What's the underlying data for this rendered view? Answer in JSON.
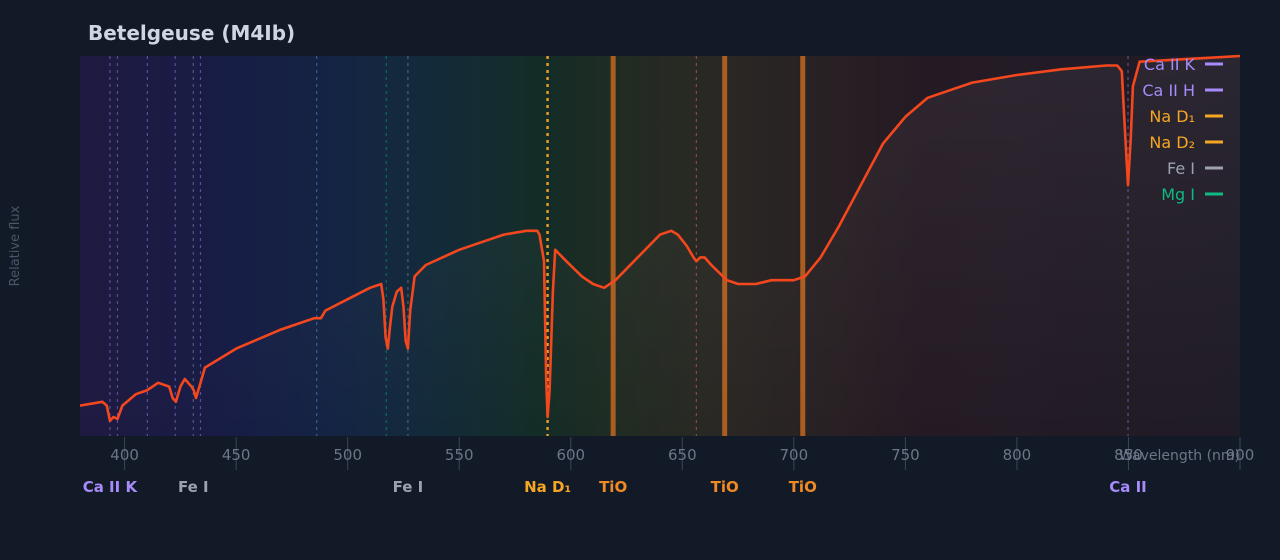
{
  "chart_data": {
    "type": "line",
    "title": "Betelgeuse (M4Ib)",
    "xlabel": "Wavelength (nm)",
    "ylabel": "Relative flux",
    "xlim": [
      380,
      900
    ],
    "ylim": [
      0,
      1
    ],
    "grid": false,
    "legend_position": "top-right",
    "x_ticks": [
      400,
      450,
      500,
      550,
      600,
      650,
      700,
      750,
      800,
      850,
      900
    ],
    "line_color": "#f4471e",
    "series": [
      {
        "values": [
          [
            380,
            0.08
          ],
          [
            390,
            0.09
          ],
          [
            392,
            0.08
          ],
          [
            393.4,
            0.04
          ],
          [
            395,
            0.05
          ],
          [
            396.8,
            0.045
          ],
          [
            399,
            0.08
          ],
          [
            405,
            0.11
          ],
          [
            410,
            0.12
          ],
          [
            415,
            0.14
          ],
          [
            420,
            0.13
          ],
          [
            421.5,
            0.1
          ],
          [
            423,
            0.09
          ],
          [
            425,
            0.13
          ],
          [
            427,
            0.15
          ],
          [
            430,
            0.13
          ],
          [
            431,
            0.12
          ],
          [
            432,
            0.1
          ],
          [
            434,
            0.14
          ],
          [
            436,
            0.18
          ],
          [
            450,
            0.23
          ],
          [
            470,
            0.28
          ],
          [
            480,
            0.3
          ],
          [
            485,
            0.31
          ],
          [
            488,
            0.31
          ],
          [
            490,
            0.33
          ],
          [
            500,
            0.36
          ],
          [
            510,
            0.39
          ],
          [
            515,
            0.4
          ],
          [
            516,
            0.36
          ],
          [
            517,
            0.26
          ],
          [
            518,
            0.23
          ],
          [
            519,
            0.29
          ],
          [
            520,
            0.34
          ],
          [
            522,
            0.38
          ],
          [
            524,
            0.39
          ],
          [
            525,
            0.34
          ],
          [
            526,
            0.25
          ],
          [
            527,
            0.23
          ],
          [
            528,
            0.33
          ],
          [
            530,
            0.42
          ],
          [
            535,
            0.45
          ],
          [
            550,
            0.49
          ],
          [
            560,
            0.51
          ],
          [
            570,
            0.53
          ],
          [
            580,
            0.54
          ],
          [
            585,
            0.54
          ],
          [
            586,
            0.53
          ],
          [
            588,
            0.46
          ],
          [
            589,
            0.15
          ],
          [
            589.6,
            0.05
          ],
          [
            590.5,
            0.12
          ],
          [
            592,
            0.38
          ],
          [
            593,
            0.49
          ],
          [
            598,
            0.46
          ],
          [
            605,
            0.42
          ],
          [
            610,
            0.4
          ],
          [
            615,
            0.39
          ],
          [
            620,
            0.41
          ],
          [
            630,
            0.47
          ],
          [
            640,
            0.53
          ],
          [
            645,
            0.54
          ],
          [
            648,
            0.53
          ],
          [
            652,
            0.5
          ],
          [
            655,
            0.47
          ],
          [
            656.3,
            0.46
          ],
          [
            658,
            0.47
          ],
          [
            660,
            0.47
          ],
          [
            663,
            0.45
          ],
          [
            670,
            0.41
          ],
          [
            675,
            0.4
          ],
          [
            683,
            0.4
          ],
          [
            690,
            0.41
          ],
          [
            700,
            0.41
          ],
          [
            705,
            0.42
          ],
          [
            712,
            0.47
          ],
          [
            720,
            0.55
          ],
          [
            730,
            0.66
          ],
          [
            740,
            0.77
          ],
          [
            750,
            0.84
          ],
          [
            760,
            0.89
          ],
          [
            770,
            0.91
          ],
          [
            780,
            0.93
          ],
          [
            800,
            0.95
          ],
          [
            820,
            0.965
          ],
          [
            840,
            0.975
          ],
          [
            845,
            0.975
          ],
          [
            847,
            0.96
          ],
          [
            848,
            0.85
          ],
          [
            849.8,
            0.66
          ],
          [
            851,
            0.78
          ],
          [
            852,
            0.92
          ],
          [
            855,
            0.985
          ],
          [
            870,
            0.99
          ],
          [
            885,
            0.995
          ],
          [
            900,
            1.0
          ]
        ]
      }
    ],
    "legend": [
      {
        "label": "Ca II K",
        "color": "#a78bfa"
      },
      {
        "label": "Ca II H",
        "color": "#a78bfa"
      },
      {
        "label": "Na D₁",
        "color": "#f5a623"
      },
      {
        "label": "Na D₂",
        "color": "#f5a623"
      },
      {
        "label": "Fe I",
        "color": "#9ca3af"
      },
      {
        "label": "Mg I",
        "color": "#10b981"
      }
    ],
    "line_markers": [
      {
        "x": 393.4,
        "color": "#a78bfa"
      },
      {
        "x": 396.8,
        "color": "#a78bfa"
      },
      {
        "x": 410.2,
        "color": "#a78bfa"
      },
      {
        "x": 422.7,
        "color": "#a78bfa"
      },
      {
        "x": 430.8,
        "color": "#9ca3af"
      },
      {
        "x": 434.0,
        "color": "#a78bfa"
      },
      {
        "x": 486.1,
        "color": "#60a5fa"
      },
      {
        "x": 517.3,
        "color": "#10b981"
      },
      {
        "x": 527.0,
        "color": "#9ca3af"
      },
      {
        "x": 589.6,
        "color": "#f5a623",
        "strong": true
      },
      {
        "x": 656.3,
        "color": "#f87171"
      },
      {
        "x": 849.8,
        "color": "#a78bfa"
      }
    ],
    "bands": [
      {
        "x": 619.0,
        "color": "#c2661e"
      },
      {
        "x": 669.0,
        "color": "#c2661e"
      },
      {
        "x": 704.0,
        "color": "#c2661e"
      }
    ],
    "annotations": [
      {
        "label": "Ca II K",
        "x": 393.4,
        "color": "#a78bfa"
      },
      {
        "label": "Fe I",
        "x": 430.8,
        "color": "#9ca3af"
      },
      {
        "label": "Fe I",
        "x": 527.0,
        "color": "#9ca3af"
      },
      {
        "label": "Na D₁",
        "x": 589.6,
        "color": "#f5a623"
      },
      {
        "label": "TiO",
        "x": 619.0,
        "color": "#f08a24"
      },
      {
        "label": "TiO",
        "x": 669.0,
        "color": "#f08a24"
      },
      {
        "label": "TiO",
        "x": 704.0,
        "color": "#f08a24"
      },
      {
        "label": "Ca II",
        "x": 849.8,
        "color": "#a78bfa"
      }
    ]
  }
}
